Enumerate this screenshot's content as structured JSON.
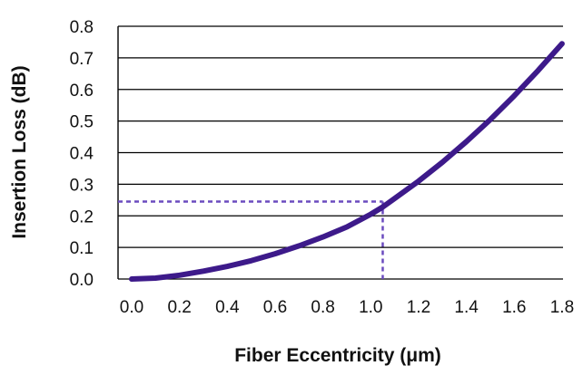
{
  "chart_data": {
    "type": "line",
    "title": "",
    "xlabel": "Fiber Eccentricity (μm)",
    "ylabel": "Insertion Loss (dB)",
    "xlim": [
      0,
      1.8
    ],
    "ylim": [
      0,
      0.8
    ],
    "x_ticks": [
      "0.0",
      "0.2",
      "0.4",
      "0.6",
      "0.8",
      "1.0",
      "1.2",
      "1.4",
      "1.6",
      "1.8"
    ],
    "y_ticks": [
      "0.0",
      "0.1",
      "0.2",
      "0.3",
      "0.4",
      "0.5",
      "0.6",
      "0.7",
      "0.8"
    ],
    "grid": "horizontal",
    "series": [
      {
        "color": "#3d1a8a",
        "x": [
          0.0,
          0.1,
          0.2,
          0.3,
          0.4,
          0.5,
          0.6,
          0.7,
          0.8,
          0.9,
          1.0,
          1.05,
          1.1,
          1.2,
          1.3,
          1.4,
          1.5,
          1.6,
          1.7,
          1.8
        ],
        "y": [
          0.0,
          0.003,
          0.012,
          0.025,
          0.04,
          0.058,
          0.08,
          0.105,
          0.133,
          0.165,
          0.205,
          0.228,
          0.255,
          0.31,
          0.37,
          0.435,
          0.505,
          0.58,
          0.66,
          0.745
        ]
      }
    ],
    "annotation": {
      "x": 1.05,
      "y": 0.245,
      "style": "dotted",
      "color": "#6b4bbf"
    }
  }
}
